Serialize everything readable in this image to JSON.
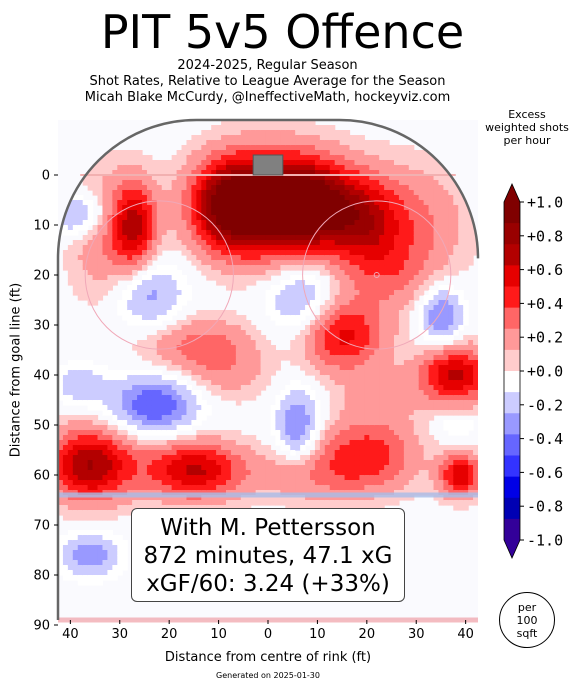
{
  "title": "PIT 5v5 Offence",
  "subtitle_lines": [
    "2024-2025, Regular Season",
    "Shot Rates, Relative to League Average for the Season",
    "Micah Blake McCurdy, @IneffectiveMath, hockeyviz.com"
  ],
  "colorbar": {
    "title_lines": [
      "Excess",
      "weighted shots",
      "per hour"
    ],
    "tick_labels": [
      "+1.0",
      "+0.8",
      "+0.6",
      "+0.4",
      "+0.2",
      "+0.0",
      "-0.2",
      "-0.4",
      "-0.6",
      "-0.8",
      "-1.0"
    ],
    "colors": [
      "#800000",
      "#990000",
      "#b30000",
      "#e60000",
      "#ff1a1a",
      "#ff6666",
      "#ff9999",
      "#ffcccc",
      "#ffffff",
      "#ccccff",
      "#9999ff",
      "#6666ff",
      "#3333ff",
      "#0000e6",
      "#0000b3",
      "#330099"
    ]
  },
  "info_box": {
    "line1": "With M. Pettersson",
    "line2": "872 minutes, 47.1 xG",
    "line3": "xGF/60: 3.24 (+33%)"
  },
  "per_area": [
    "per",
    "100",
    "sqft"
  ],
  "generated": "Generated on 2025-01-30",
  "chart_data": {
    "type": "heatmap",
    "title": "PIT 5v5 Offence",
    "xlabel": "Distance from centre of rink (ft)",
    "ylabel": "Distance from goal line (ft)",
    "x_ticks": [
      "40",
      "30",
      "20",
      "10",
      "0",
      "10",
      "20",
      "30",
      "40"
    ],
    "x_tick_values": [
      -40,
      -30,
      -20,
      -10,
      0,
      10,
      20,
      30,
      40
    ],
    "y_ticks": [
      "0",
      "10",
      "20",
      "30",
      "40",
      "50",
      "60",
      "70",
      "80",
      "90"
    ],
    "y_tick_values": [
      0,
      10,
      20,
      30,
      40,
      50,
      60,
      70,
      80,
      90
    ],
    "xlim": [
      -42.5,
      42.5
    ],
    "ylim": [
      -11,
      89
    ],
    "value_range": [
      -1.0,
      1.0
    ],
    "blobs": [
      {
        "x": 0,
        "y": 6,
        "sx": 9,
        "sy": 7,
        "value": 1.0
      },
      {
        "x": -8,
        "y": 6,
        "sx": 5,
        "sy": 6,
        "value": 0.55
      },
      {
        "x": 9,
        "y": 6,
        "sx": 6,
        "sy": 6,
        "value": 0.6
      },
      {
        "x": -27,
        "y": 10,
        "sx": 3,
        "sy": 6,
        "value": 0.6
      },
      {
        "x": -33,
        "y": 12,
        "sx": 5,
        "sy": 9,
        "value": 0.25
      },
      {
        "x": 19,
        "y": 9,
        "sx": 5,
        "sy": 6,
        "value": 0.45
      },
      {
        "x": 28,
        "y": 10,
        "sx": 8,
        "sy": 8,
        "value": 0.3
      },
      {
        "x": -38,
        "y": 8,
        "sx": 4,
        "sy": 3,
        "value": -0.35
      },
      {
        "x": -24,
        "y": 24,
        "sx": 5,
        "sy": 5,
        "value": -0.3
      },
      {
        "x": 7,
        "y": 25,
        "sx": 5,
        "sy": 6,
        "value": -0.3
      },
      {
        "x": 24,
        "y": 20,
        "sx": 6,
        "sy": 5,
        "value": 0.2
      },
      {
        "x": 35,
        "y": 28,
        "sx": 3,
        "sy": 4,
        "value": -0.4
      },
      {
        "x": 15,
        "y": 32,
        "sx": 6,
        "sy": 5,
        "value": 0.55
      },
      {
        "x": -14,
        "y": 34,
        "sx": 8,
        "sy": 4,
        "value": 0.3
      },
      {
        "x": 38,
        "y": 40,
        "sx": 5,
        "sy": 4,
        "value": 0.65
      },
      {
        "x": -23,
        "y": 46,
        "sx": 6,
        "sy": 4,
        "value": -0.5
      },
      {
        "x": 6,
        "y": 50,
        "sx": 3,
        "sy": 5,
        "value": -0.4
      },
      {
        "x": -38,
        "y": 42,
        "sx": 4,
        "sy": 3,
        "value": -0.2
      },
      {
        "x": 38,
        "y": 50,
        "sx": 3,
        "sy": 2,
        "value": -0.15
      },
      {
        "x": -8,
        "y": 40,
        "sx": 6,
        "sy": 4,
        "value": 0.15
      },
      {
        "x": 23,
        "y": 44,
        "sx": 6,
        "sy": 4,
        "value": 0.15
      },
      {
        "x": -36,
        "y": 58,
        "sx": 6,
        "sy": 5,
        "value": 0.75
      },
      {
        "x": -15,
        "y": 59,
        "sx": 7,
        "sy": 4,
        "value": 0.65
      },
      {
        "x": 20,
        "y": 56,
        "sx": 7,
        "sy": 5,
        "value": 0.45
      },
      {
        "x": 39,
        "y": 60,
        "sx": 3,
        "sy": 3,
        "value": 0.6
      },
      {
        "x": 8,
        "y": 60,
        "sx": 8,
        "sy": 4,
        "value": 0.2
      },
      {
        "x": -36,
        "y": 76,
        "sx": 4,
        "sy": 3,
        "value": -0.35
      }
    ]
  }
}
